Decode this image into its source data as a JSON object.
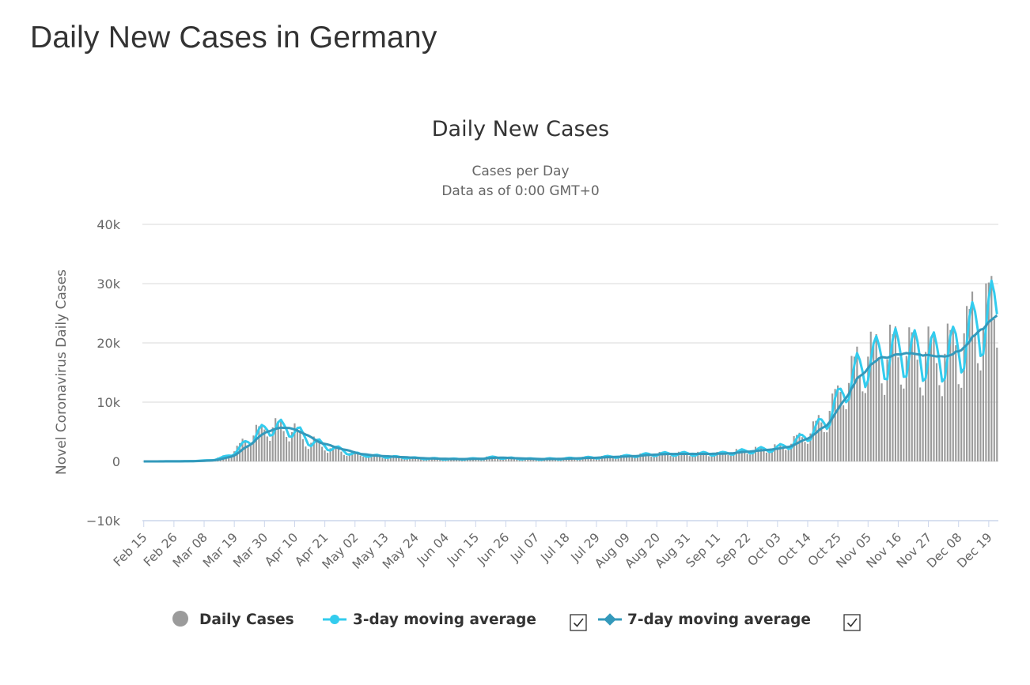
{
  "page": {
    "title": "Daily New Cases in Germany"
  },
  "colors": {
    "bars": "#9b9b9b",
    "ma3": "#33ccee",
    "ma7": "#3399bb",
    "grid": "#e6e6e6",
    "axis": "#ccd6eb"
  },
  "chart_data": {
    "type": "bar",
    "title": "Daily New Cases",
    "subtitle_lines": [
      "Cases per Day",
      "Data as of 0:00 GMT+0"
    ],
    "ylabel": "Novel Coronavirus Daily Cases",
    "ylim": [
      -10000,
      40000
    ],
    "y_ticks": [
      -10000,
      0,
      10000,
      20000,
      30000,
      40000
    ],
    "y_tick_labels": [
      "−10k",
      "0",
      "10k",
      "20k",
      "30k",
      "40k"
    ],
    "grid": true,
    "x_tick_labels": [
      "Feb 15",
      "Feb 26",
      "Mar 08",
      "Mar 19",
      "Mar 30",
      "Apr 10",
      "Apr 21",
      "May 02",
      "May 13",
      "May 24",
      "Jun 04",
      "Jun 15",
      "Jun 26",
      "Jul 07",
      "Jul 18",
      "Jul 29",
      "Aug 09",
      "Aug 20",
      "Aug 31",
      "Sep 11",
      "Sep 22",
      "Oct 03",
      "Oct 14",
      "Oct 25",
      "Nov 05",
      "Nov 16",
      "Nov 27",
      "Dec 08",
      "Dec 19"
    ],
    "x_tick_every_days": 11,
    "x_start": "Feb 15",
    "x_end": "Dec 22",
    "weekly_cycle_anchor_x": "Nov 14",
    "trend_points": [
      {
        "x": "Feb 15",
        "y": 0
      },
      {
        "x": "Mar 01",
        "y": 30
      },
      {
        "x": "Mar 08",
        "y": 150
      },
      {
        "x": "Mar 12",
        "y": 400
      },
      {
        "x": "Mar 16",
        "y": 1000
      },
      {
        "x": "Mar 19",
        "y": 1800
      },
      {
        "x": "Mar 22",
        "y": 3000
      },
      {
        "x": "Mar 26",
        "y": 4500
      },
      {
        "x": "Mar 30",
        "y": 5600
      },
      {
        "x": "Apr 03",
        "y": 6100
      },
      {
        "x": "Apr 07",
        "y": 5600
      },
      {
        "x": "Apr 10",
        "y": 5000
      },
      {
        "x": "Apr 14",
        "y": 3800
      },
      {
        "x": "Apr 21",
        "y": 2600
      },
      {
        "x": "May 02",
        "y": 1200
      },
      {
        "x": "May 13",
        "y": 800
      },
      {
        "x": "May 24",
        "y": 550
      },
      {
        "x": "Jun 04",
        "y": 400
      },
      {
        "x": "Jun 15",
        "y": 450
      },
      {
        "x": "Jun 20",
        "y": 700
      },
      {
        "x": "Jun 26",
        "y": 550
      },
      {
        "x": "Jul 07",
        "y": 380
      },
      {
        "x": "Jul 18",
        "y": 500
      },
      {
        "x": "Jul 29",
        "y": 700
      },
      {
        "x": "Aug 09",
        "y": 900
      },
      {
        "x": "Aug 20",
        "y": 1300
      },
      {
        "x": "Aug 31",
        "y": 1300
      },
      {
        "x": "Sep 11",
        "y": 1300
      },
      {
        "x": "Sep 22",
        "y": 1800
      },
      {
        "x": "Oct 03",
        "y": 2300
      },
      {
        "x": "Oct 08",
        "y": 3200
      },
      {
        "x": "Oct 14",
        "y": 4800
      },
      {
        "x": "Oct 20",
        "y": 7000
      },
      {
        "x": "Oct 25",
        "y": 11000
      },
      {
        "x": "Oct 30",
        "y": 14800
      },
      {
        "x": "Nov 05",
        "y": 17500
      },
      {
        "x": "Nov 10",
        "y": 18400
      },
      {
        "x": "Nov 16",
        "y": 18700
      },
      {
        "x": "Nov 22",
        "y": 18700
      },
      {
        "x": "Nov 27",
        "y": 18300
      },
      {
        "x": "Dec 02",
        "y": 17700
      },
      {
        "x": "Dec 06",
        "y": 19000
      },
      {
        "x": "Dec 10",
        "y": 21500
      },
      {
        "x": "Dec 14",
        "y": 23000
      },
      {
        "x": "Dec 19",
        "y": 25000
      },
      {
        "x": "Dec 22",
        "y": 25500
      }
    ],
    "highlights": [
      {
        "x": "Dec 20",
        "y": 31300
      },
      {
        "x": "Dec 21",
        "y": 24000
      },
      {
        "x": "Dec 22",
        "y": 19200
      }
    ],
    "series": [
      {
        "name": "Daily Cases",
        "style": "bars"
      },
      {
        "name": "3-day moving average",
        "style": "line",
        "checked": true
      },
      {
        "name": "7-day moving average",
        "style": "line",
        "checked": true
      }
    ],
    "legend_position": "bottom"
  }
}
